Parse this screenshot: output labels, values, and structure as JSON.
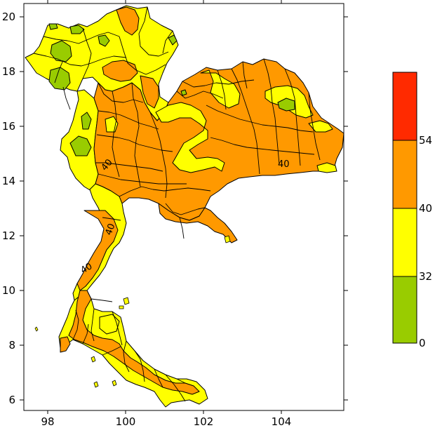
{
  "axes": {
    "x_ticks": [
      "98",
      "100",
      "102",
      "104"
    ],
    "y_ticks": [
      "20",
      "18",
      "16",
      "14",
      "12",
      "10",
      "8",
      "6"
    ]
  },
  "legend": {
    "bands": [
      {
        "from": "54",
        "to": "",
        "color": "#ff2a00"
      },
      {
        "from": "40",
        "to": "54",
        "color": "#ff9900"
      },
      {
        "from": "32",
        "to": "40",
        "color": "#ffff00"
      },
      {
        "from": "0",
        "to": "32",
        "color": "#99cc00"
      }
    ],
    "labels": [
      "54",
      "40",
      "32",
      "0"
    ]
  },
  "contour_labels": [
    "40",
    "40",
    "40",
    "40"
  ],
  "colors": {
    "green": "#99cc00",
    "yellow": "#ffff00",
    "orange": "#ff9900",
    "red": "#ff2a00",
    "outline": "#000000"
  }
}
